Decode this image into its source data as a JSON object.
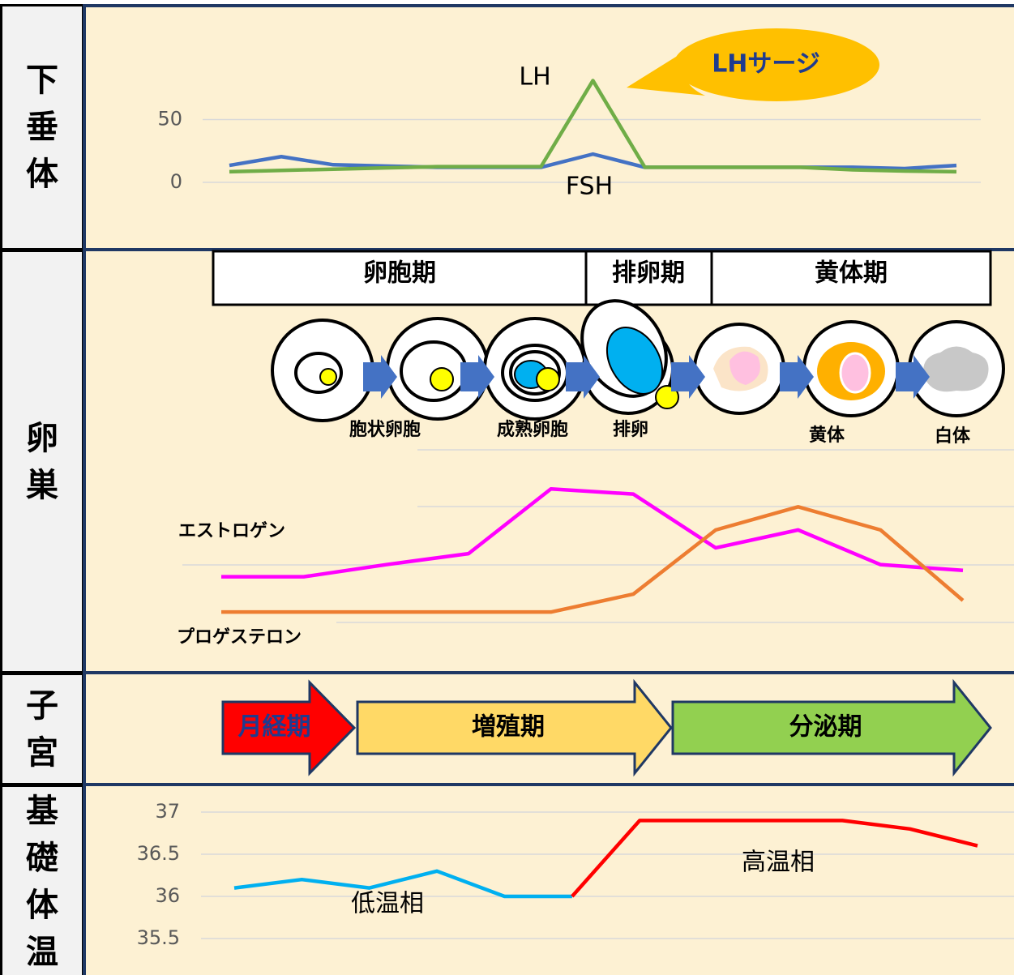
{
  "sections": [
    {
      "label": "下垂体"
    },
    {
      "label": "卵巣"
    },
    {
      "label": "子宮"
    },
    {
      "label": "基礎体温"
    }
  ],
  "pituitary_chart": {
    "type": "line",
    "ylim": [
      0,
      100
    ],
    "yticks": [
      0,
      50
    ],
    "grid": true,
    "series": [
      {
        "name": "FSH",
        "color": "#4472c4",
        "values": [
          13.5,
          20.5,
          14,
          13,
          12,
          12,
          12,
          22.5,
          12,
          12,
          12,
          12,
          12,
          11,
          13.5
        ]
      },
      {
        "name": "LH",
        "color": "#70ad47",
        "values": [
          8.5,
          9.5,
          10.5,
          11.5,
          12.5,
          12.5,
          12.5,
          81,
          12,
          12,
          12,
          12,
          10,
          9,
          8.5
        ]
      }
    ],
    "annotation": "LHサージ"
  },
  "ovary": {
    "phases": [
      "卵胞期",
      "排卵期",
      "黄体期"
    ],
    "stages": [
      "胞状卵胞",
      "成熟卵胞",
      "排卵",
      "黄体",
      "白体"
    ]
  },
  "ovary_chart": {
    "type": "line",
    "ylim": [
      0,
      3
    ],
    "series": [
      {
        "name": "エストロゲン",
        "color": "#ff00ff",
        "values": [
          0.79,
          0.79,
          1.0,
          1.19,
          2.31,
          2.22,
          1.29,
          1.6,
          1.0,
          0.9
        ]
      },
      {
        "name": "プロゲステロン",
        "color": "#ed7d31",
        "values": [
          0.18,
          0.18,
          0.18,
          0.18,
          0.18,
          0.49,
          1.6,
          2.0,
          1.6,
          0.38
        ]
      }
    ]
  },
  "uterus": {
    "phases": [
      {
        "label": "月経期",
        "color": "#ff0000"
      },
      {
        "label": "増殖期",
        "color": "#ffd966"
      },
      {
        "label": "分泌期",
        "color": "#92d050"
      }
    ]
  },
  "bbt_chart": {
    "type": "line",
    "ylim": [
      35.5,
      37
    ],
    "yticks": [
      37,
      36.5,
      36,
      35.5
    ],
    "grid": true,
    "series": [
      {
        "name": "低温相",
        "color": "#00b0f0",
        "values": [
          36.1,
          36.2,
          36.1,
          36.3,
          36.0,
          36.0,
          null,
          null,
          null,
          null,
          null,
          null
        ]
      },
      {
        "name": "高温相",
        "color": "#ff0000",
        "values": [
          null,
          null,
          null,
          null,
          null,
          36.0,
          36.9,
          36.9,
          36.9,
          36.9,
          36.8,
          36.6
        ]
      }
    ]
  }
}
